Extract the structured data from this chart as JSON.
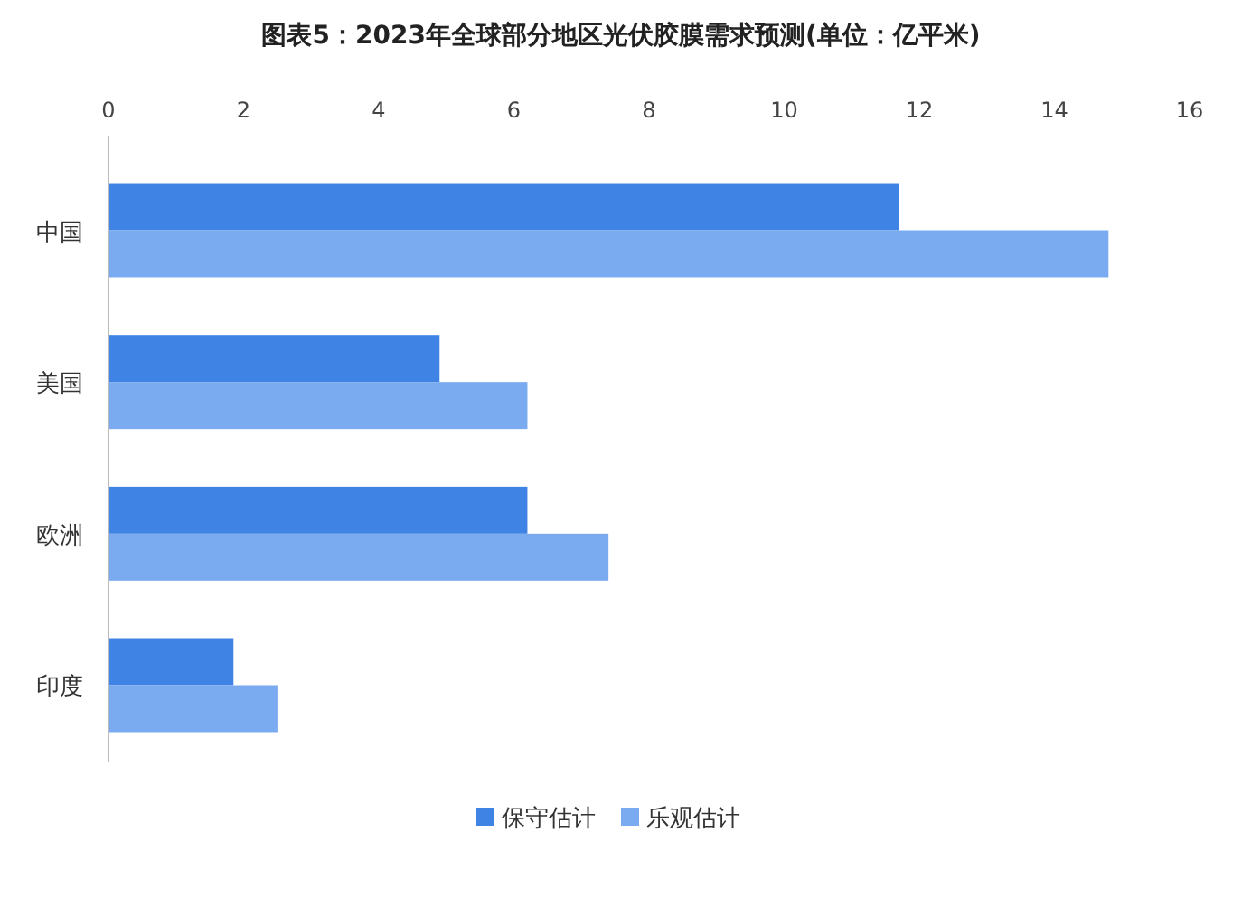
{
  "chart_data": {
    "type": "bar",
    "orientation": "horizontal",
    "title": "图表5：2023年全球部分地区光伏胶膜需求预测(单位：亿平米)",
    "categories": [
      "中国",
      "美国",
      "欧洲",
      "印度"
    ],
    "series": [
      {
        "name": "保守估计",
        "color": "#3f83e4",
        "values": [
          11.7,
          4.9,
          6.2,
          1.85
        ]
      },
      {
        "name": "乐观估计",
        "color": "#7aaaf0",
        "values": [
          14.8,
          6.2,
          7.4,
          2.5
        ]
      }
    ],
    "xlim": [
      0,
      16
    ],
    "xticks": [
      0,
      2,
      4,
      6,
      8,
      10,
      12,
      14,
      16
    ],
    "grid": false,
    "legend": "bottom"
  }
}
